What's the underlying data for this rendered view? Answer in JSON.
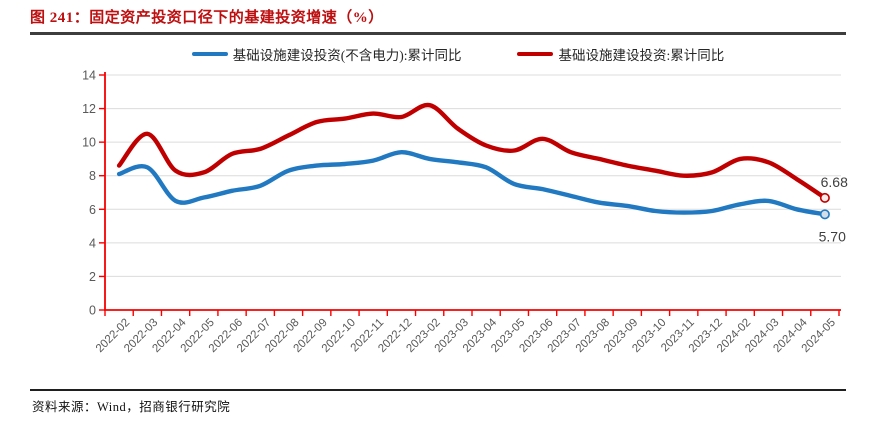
{
  "title": "图 241：固定资产投资口径下的基建投资增速（%）",
  "footer": {
    "source": "资料来源：Wind，招商银行研究院"
  },
  "legend": {
    "items": [
      {
        "label": "基础设施建设投资(不含电力):累计同比",
        "color": "#217ac1"
      },
      {
        "label": "基础设施建设投资:累计同比",
        "color": "#c00000"
      }
    ]
  },
  "colors": {
    "title": "#be0f10",
    "axis": "#f80000",
    "grid": "#dcdcdc",
    "tick_label": "#595959",
    "end_label": "#3f3f3f",
    "series_blue": "#217ac1",
    "series_red": "#c00000"
  },
  "chart_data": {
    "type": "line",
    "title": "固定资产投资口径下的基建投资增速（%）",
    "xlabel": "",
    "ylabel": "",
    "ylim": [
      0,
      14
    ],
    "yticks": [
      0,
      2,
      4,
      6,
      8,
      10,
      12,
      14
    ],
    "grid": true,
    "legend_position": "top",
    "categories": [
      "2022-02",
      "2022-03",
      "2022-04",
      "2022-05",
      "2022-06",
      "2022-07",
      "2022-08",
      "2022-09",
      "2022-10",
      "2022-11",
      "2022-12",
      "2023-02",
      "2023-03",
      "2023-04",
      "2023-05",
      "2023-06",
      "2023-07",
      "2023-08",
      "2023-09",
      "2023-10",
      "2023-11",
      "2023-12",
      "2024-02",
      "2024-03",
      "2024-04",
      "2024-05"
    ],
    "series": [
      {
        "name": "基础设施建设投资(不含电力):累计同比",
        "color": "#217ac1",
        "marker_fill": "#d3dde8",
        "end_label": "5.70",
        "values": [
          8.1,
          8.5,
          6.5,
          6.7,
          7.1,
          7.4,
          8.3,
          8.6,
          8.7,
          8.9,
          9.4,
          9.0,
          8.8,
          8.5,
          7.5,
          7.2,
          6.8,
          6.4,
          6.2,
          5.9,
          5.8,
          5.9,
          6.3,
          6.5,
          6.0,
          5.7
        ]
      },
      {
        "name": "基础设施建设投资:累计同比",
        "color": "#c00000",
        "marker_fill": "#fbecec",
        "end_label": "6.68",
        "values": [
          8.6,
          10.5,
          8.3,
          8.2,
          9.3,
          9.6,
          10.4,
          11.2,
          11.4,
          11.7,
          11.5,
          12.2,
          10.8,
          9.8,
          9.5,
          10.2,
          9.4,
          9.0,
          8.6,
          8.3,
          8.0,
          8.2,
          9.0,
          8.8,
          7.8,
          6.68
        ]
      }
    ]
  }
}
